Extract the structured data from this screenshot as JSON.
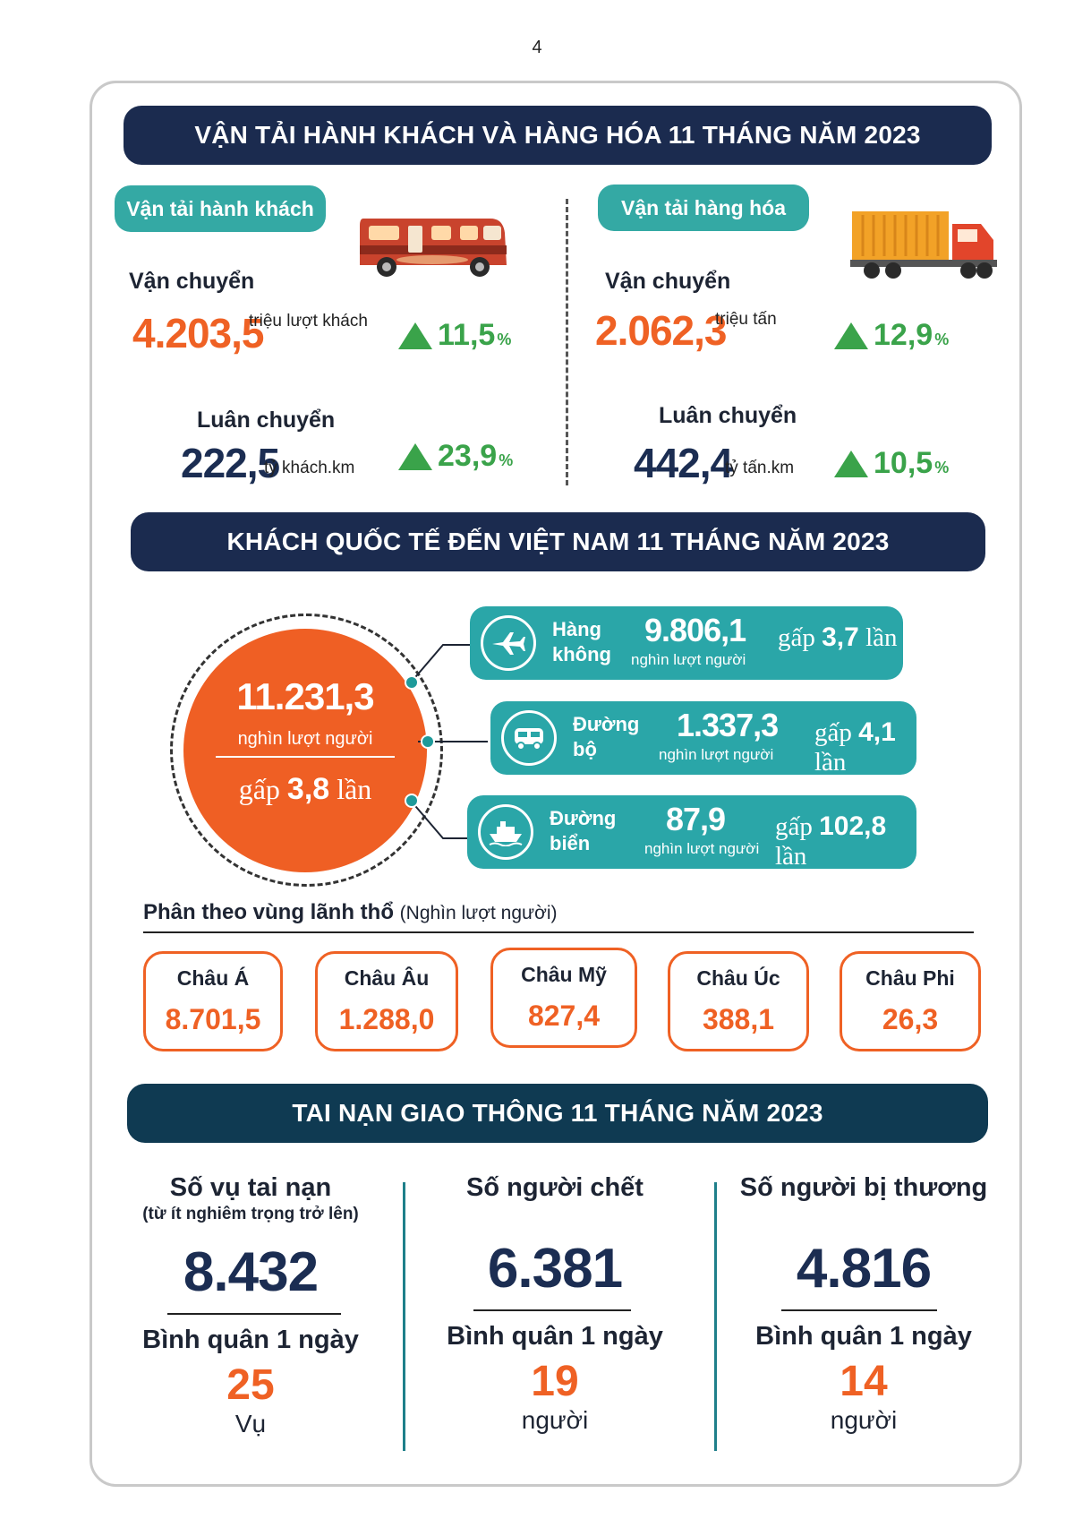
{
  "page_number": "4",
  "transport": {
    "banner": "VẬN TẢI HÀNH KHÁCH VÀ HÀNG HÓA 11 THÁNG NĂM 2023",
    "passenger": {
      "pill": "Vận tải hành khách",
      "transport_label": "Vận chuyển",
      "transport_value": "4.203,5",
      "transport_unit": "triệu lượt khách",
      "transport_growth": "11,5",
      "rotation_label": "Luân chuyển",
      "rotation_value": "222,5",
      "rotation_unit": "tỷ khách.km",
      "rotation_growth": "23,9",
      "icon": "bus-icon"
    },
    "freight": {
      "pill": "Vận tải hàng hóa",
      "transport_label": "Vận chuyển",
      "transport_value": "2.062,3",
      "transport_unit": "triệu tấn",
      "transport_growth": "12,9",
      "rotation_label": "Luân chuyển",
      "rotation_value": "442,4",
      "rotation_unit": "tỷ tấn.km",
      "rotation_growth": "10,5",
      "icon": "truck-icon"
    },
    "percent_sign": "%"
  },
  "visitors": {
    "banner": "KHÁCH QUỐC TẾ ĐẾN VIỆT NAM 11 THÁNG NĂM 2023",
    "total_value": "11.231,3",
    "total_unit": "nghìn lượt người",
    "total_gap_prefix": "gấp",
    "total_gap_value": "3,8",
    "total_gap_suffix": "lần",
    "modes": [
      {
        "name": "Hàng không",
        "value": "9.806,1",
        "unit": "nghìn lượt người",
        "gap_prefix": "gấp",
        "gap_value": "3,7",
        "gap_suffix": "lần",
        "icon": "airplane-icon"
      },
      {
        "name": "Đường bộ",
        "value": "1.337,3",
        "unit": "nghìn lượt người",
        "gap_prefix": "gấp",
        "gap_value": "4,1",
        "gap_suffix": "lần",
        "icon": "car-icon"
      },
      {
        "name": "Đường biển",
        "value": "87,9",
        "unit": "nghìn lượt người",
        "gap_prefix": "gấp",
        "gap_value": "102,8",
        "gap_suffix": "lần",
        "icon": "ship-icon"
      }
    ],
    "region_title": "Phân theo vùng lãnh thổ",
    "region_unit": "(Nghìn lượt người)",
    "regions": [
      {
        "name": "Châu Á",
        "value": "8.701,5"
      },
      {
        "name": "Châu Âu",
        "value": "1.288,0"
      },
      {
        "name": "Châu Mỹ",
        "value": "827,4"
      },
      {
        "name": "Châu Úc",
        "value": "388,1"
      },
      {
        "name": "Châu Phi",
        "value": "26,3"
      }
    ]
  },
  "accidents": {
    "banner": "TAI NẠN GIAO THÔNG 11 THÁNG NĂM 2023",
    "items": [
      {
        "title": "Số vụ tai nạn",
        "subtitle": "(từ ít nghiêm trọng trở lên)",
        "value": "8.432",
        "avg_label": "Bình quân 1 ngày",
        "avg_value": "25",
        "avg_unit": "Vụ"
      },
      {
        "title": "Số người chết",
        "subtitle": "",
        "value": "6.381",
        "avg_label": "Bình quân 1 ngày",
        "avg_value": "19",
        "avg_unit": "người"
      },
      {
        "title": "Số người bị thương",
        "subtitle": "",
        "value": "4.816",
        "avg_label": "Bình quân 1 ngày",
        "avg_value": "14",
        "avg_unit": "người"
      }
    ]
  },
  "colors": {
    "navy": "#1b2b4f",
    "orange": "#ef6124",
    "teal": "#2aa6a8",
    "green": "#3aa34a"
  }
}
